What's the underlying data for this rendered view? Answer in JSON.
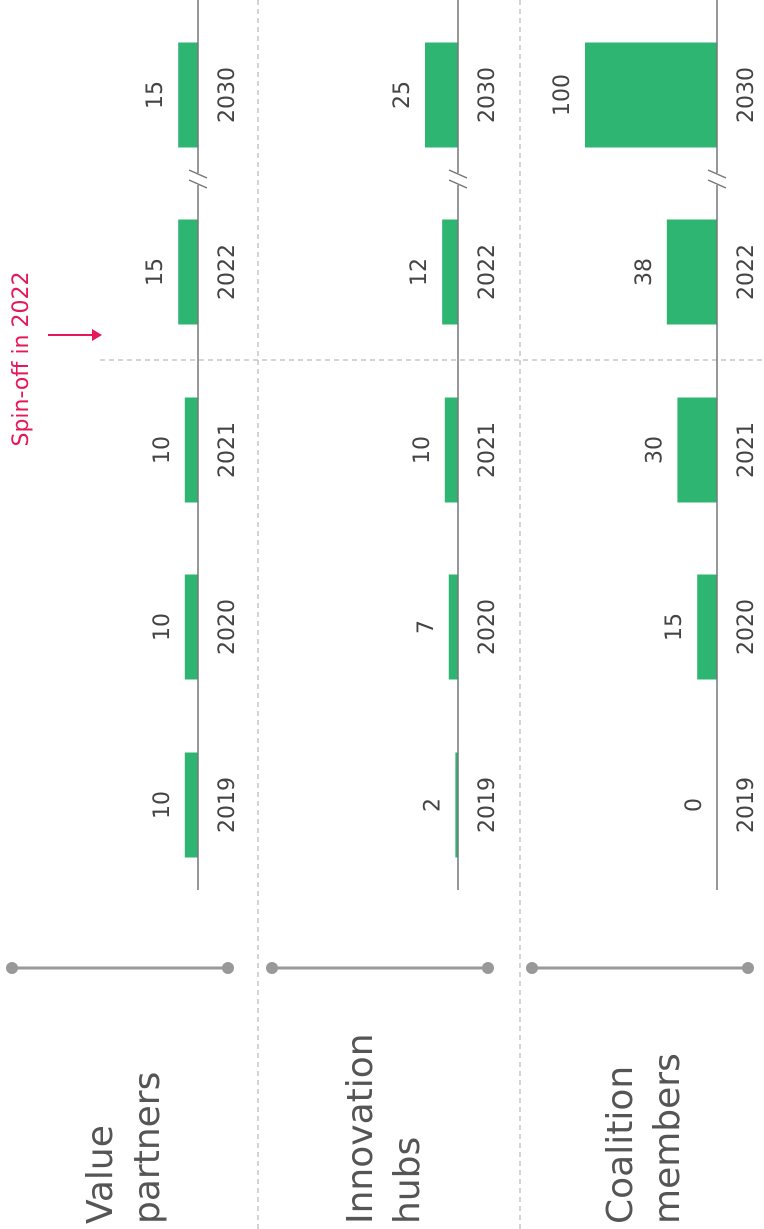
{
  "chart_data": [
    {
      "type": "bar",
      "title": [
        "Value",
        "partners"
      ],
      "categories": [
        "2019",
        "2020",
        "2021",
        "2022",
        "2030"
      ],
      "values": [
        10,
        10,
        10,
        15,
        15
      ],
      "color": "#2eb571"
    },
    {
      "type": "bar",
      "title": [
        "Innovation",
        "hubs"
      ],
      "categories": [
        "2019",
        "2020",
        "2021",
        "2022",
        "2030"
      ],
      "values": [
        2,
        7,
        10,
        12,
        25
      ],
      "color": "#2eb571"
    },
    {
      "type": "bar",
      "title": [
        "Coalition",
        "members"
      ],
      "categories": [
        "2019",
        "2020",
        "2021",
        "2022",
        "2030"
      ],
      "values": [
        0,
        15,
        30,
        38,
        100
      ],
      "color": "#2eb571"
    }
  ],
  "annotation": "Spin-off in 2022"
}
